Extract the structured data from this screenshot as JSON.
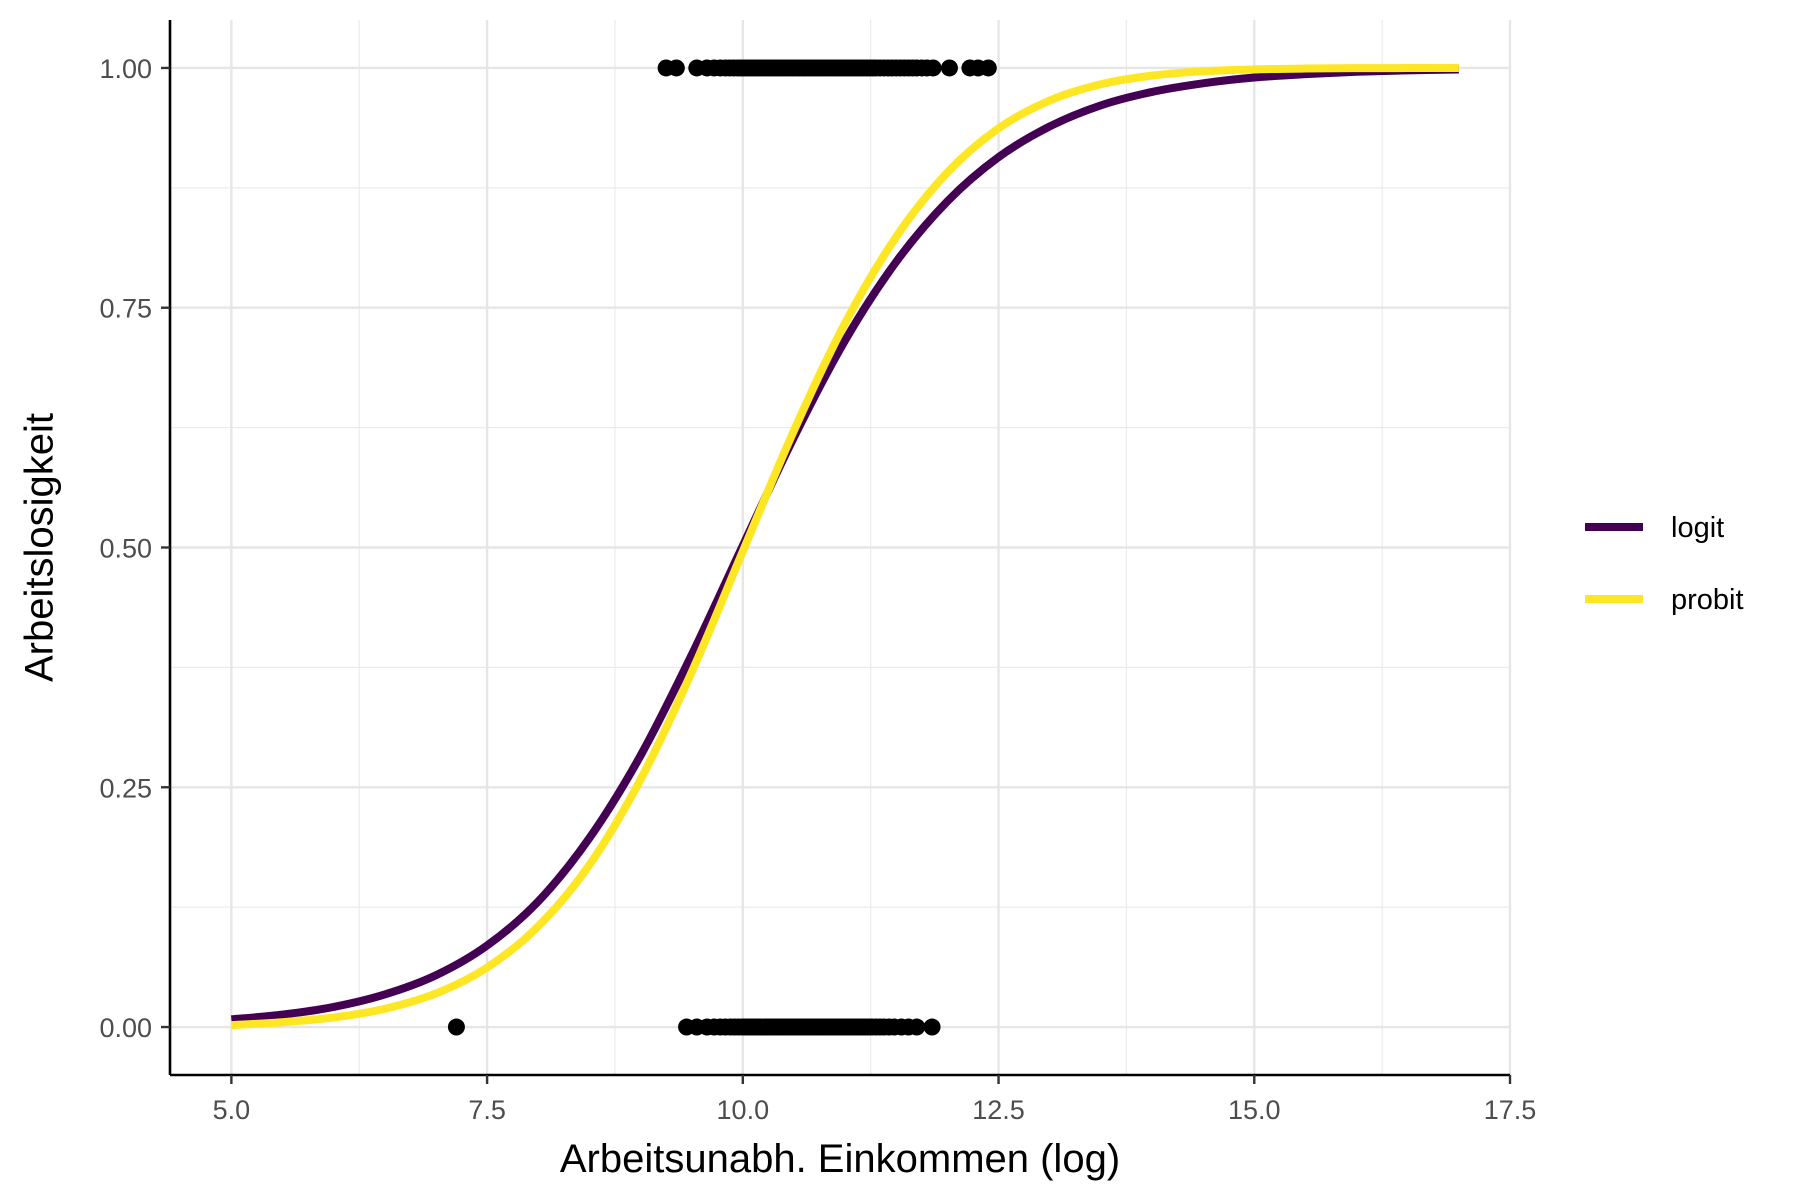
{
  "chart_data": {
    "type": "line",
    "xlabel": "Arbeitsunabh. Einkommen (log)",
    "ylabel": "Arbeitslosigkeit",
    "xlim": [
      4.4,
      17.5
    ],
    "ylim": [
      -0.05,
      1.05
    ],
    "x_ticks": [
      5.0,
      7.5,
      10.0,
      12.5,
      15.0,
      17.5
    ],
    "x_tick_labels": [
      "5.0",
      "7.5",
      "10.0",
      "12.5",
      "15.0",
      "17.5"
    ],
    "y_ticks": [
      0.0,
      0.25,
      0.5,
      0.75,
      1.0
    ],
    "y_tick_labels": [
      "0.00",
      "0.25",
      "0.50",
      "0.75",
      "1.00"
    ],
    "grid": true,
    "legend_position": "right",
    "series": [
      {
        "name": "logit",
        "color": "#440154",
        "x": [
          5.0,
          5.5,
          6.0,
          6.5,
          7.0,
          7.5,
          8.0,
          8.5,
          9.0,
          9.5,
          10.0,
          10.5,
          11.0,
          11.5,
          12.0,
          12.5,
          13.0,
          13.5,
          14.0,
          14.5,
          15.0,
          15.5,
          16.0,
          16.5,
          17.0
        ],
        "y": [
          0.008,
          0.013,
          0.021,
          0.034,
          0.054,
          0.085,
          0.131,
          0.197,
          0.283,
          0.388,
          0.502,
          0.615,
          0.716,
          0.798,
          0.861,
          0.907,
          0.939,
          0.961,
          0.975,
          0.984,
          0.99,
          0.9935,
          0.996,
          0.9975,
          0.9984
        ]
      },
      {
        "name": "probit",
        "color": "#fde725",
        "x": [
          5.0,
          5.5,
          6.0,
          6.5,
          7.0,
          7.5,
          8.0,
          8.5,
          9.0,
          9.5,
          10.0,
          10.5,
          11.0,
          11.5,
          12.0,
          12.5,
          13.0,
          13.5,
          14.0,
          14.5,
          15.0,
          15.5,
          16.0,
          16.5,
          17.0
        ],
        "y": [
          0.002,
          0.005,
          0.01,
          0.019,
          0.035,
          0.062,
          0.105,
          0.169,
          0.258,
          0.37,
          0.496,
          0.622,
          0.734,
          0.824,
          0.891,
          0.937,
          0.966,
          0.983,
          0.992,
          0.9965,
          0.9985,
          0.9994,
          0.9998,
          0.9999,
          1.0
        ]
      }
    ],
    "points": {
      "color": "#000000",
      "y1_x": [
        9.25,
        9.35,
        9.55,
        9.65,
        9.72,
        9.78,
        9.83,
        9.87,
        9.91,
        9.95,
        9.98,
        10.01,
        10.04,
        10.07,
        10.1,
        10.13,
        10.16,
        10.19,
        10.22,
        10.25,
        10.28,
        10.31,
        10.34,
        10.37,
        10.4,
        10.43,
        10.46,
        10.49,
        10.52,
        10.55,
        10.58,
        10.61,
        10.64,
        10.67,
        10.7,
        10.73,
        10.76,
        10.79,
        10.82,
        10.85,
        10.88,
        10.91,
        10.94,
        10.97,
        11.0,
        11.03,
        11.06,
        11.09,
        11.12,
        11.15,
        11.18,
        11.21,
        11.24,
        11.27,
        11.3,
        11.34,
        11.38,
        11.42,
        11.46,
        11.5,
        11.54,
        11.58,
        11.62,
        11.66,
        11.7,
        11.75,
        11.8,
        11.86,
        12.02,
        12.22,
        12.3,
        12.4
      ],
      "y0_x": [
        7.2,
        9.45,
        9.55,
        9.65,
        9.72,
        9.78,
        9.83,
        9.88,
        9.92,
        9.96,
        10.0,
        10.03,
        10.06,
        10.09,
        10.12,
        10.15,
        10.18,
        10.21,
        10.24,
        10.27,
        10.3,
        10.33,
        10.36,
        10.39,
        10.42,
        10.45,
        10.48,
        10.51,
        10.54,
        10.57,
        10.6,
        10.63,
        10.66,
        10.69,
        10.72,
        10.75,
        10.78,
        10.81,
        10.84,
        10.87,
        10.9,
        10.93,
        10.96,
        10.99,
        11.02,
        11.05,
        11.08,
        11.11,
        11.14,
        11.17,
        11.2,
        11.23,
        11.26,
        11.3,
        11.34,
        11.38,
        11.43,
        11.48,
        11.55,
        11.62,
        11.7,
        11.85
      ]
    }
  }
}
